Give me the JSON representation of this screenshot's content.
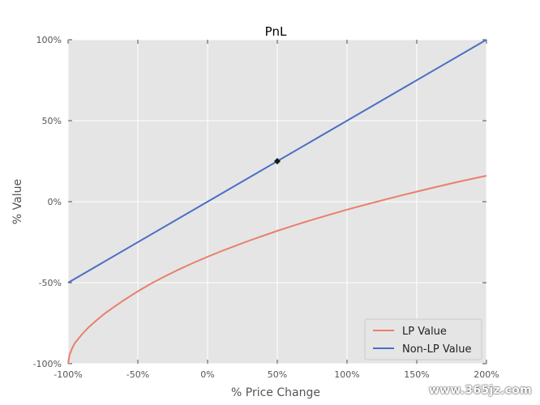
{
  "chart_data": {
    "type": "line",
    "title": "PnL",
    "xlabel": "% Price Change",
    "ylabel": "% Value",
    "xlim": [
      -100,
      200
    ],
    "ylim": [
      -100,
      100
    ],
    "x_ticks": [
      -100,
      -50,
      0,
      50,
      100,
      150,
      200
    ],
    "x_tick_labels": [
      "-100%",
      "-50%",
      "0%",
      "50%",
      "100%",
      "150%",
      "200%"
    ],
    "y_ticks": [
      -100,
      -50,
      0,
      50,
      100
    ],
    "y_tick_labels": [
      "-100%",
      "-50%",
      "0%",
      "50%",
      "100%"
    ],
    "grid": true,
    "legend_position": "lower-right",
    "series": [
      {
        "name": "LP Value",
        "color": "#e8806b",
        "x": [
          -100,
          -99,
          -97,
          -95,
          -90,
          -85,
          -80,
          -75,
          -70,
          -60,
          -50,
          -40,
          -30,
          -20,
          -10,
          0,
          10,
          20,
          30,
          40,
          50,
          60,
          70,
          80,
          90,
          100,
          110,
          120,
          130,
          140,
          150,
          160,
          170,
          180,
          190,
          200
        ],
        "y": [
          -100,
          -94.6,
          -90.3,
          -87.1,
          -81.8,
          -77.3,
          -73.5,
          -69.9,
          -66.7,
          -60.8,
          -55.3,
          -50.3,
          -45.8,
          -41.6,
          -37.7,
          -34.0,
          -30.5,
          -27.2,
          -24.0,
          -21.0,
          -18.0,
          -15.2,
          -12.5,
          -9.9,
          -7.4,
          -4.9,
          -2.6,
          -0.3,
          1.9,
          4.1,
          6.2,
          8.3,
          10.3,
          12.3,
          14.2,
          16.0
        ]
      },
      {
        "name": "Non-LP Value",
        "color": "#4a6fc4",
        "x": [
          -100,
          200
        ],
        "y": [
          -50,
          100
        ]
      }
    ],
    "annotations": [
      {
        "type": "marker",
        "x": 50,
        "y": 25,
        "color": "#1a1a1a"
      }
    ]
  },
  "watermark": "www.365jz.com"
}
